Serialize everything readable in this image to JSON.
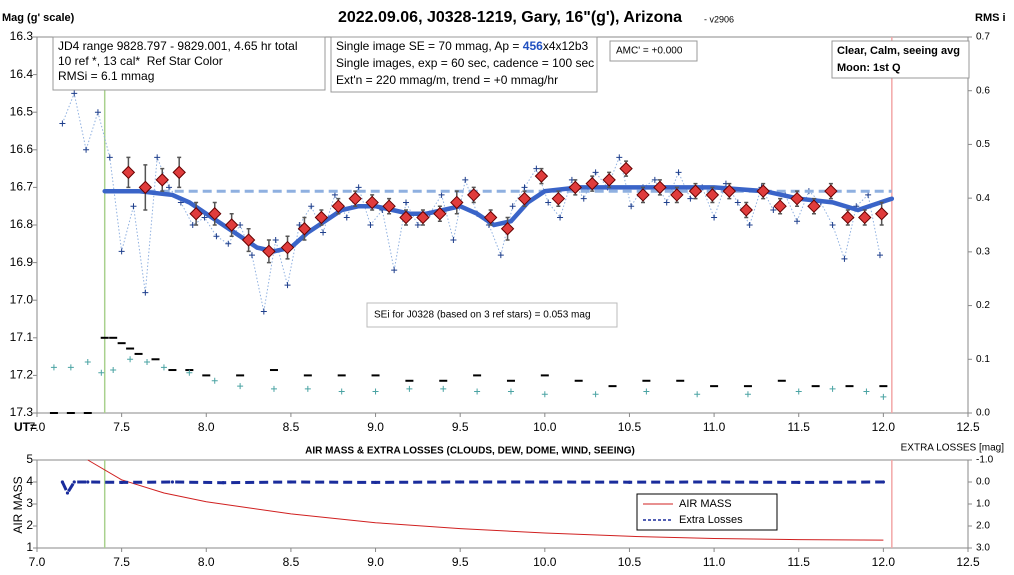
{
  "chart_data": [
    {
      "type": "scatter",
      "title": "2022.09.06, J0328-1219, Gary, 16\"(g'), Arizona",
      "subtitle": "- v2906",
      "ylabel": "Mag (g' scale)",
      "y2label": "RMS i",
      "xlabel": "UT=",
      "xlim": [
        7,
        12.5
      ],
      "xticks": [
        {
          "value": 7,
          "label": "7.0"
        },
        7.5,
        {
          "value": 8,
          "label": "8.0"
        },
        8.5,
        {
          "value": 9,
          "label": "9.0"
        },
        9.5,
        {
          "value": 10,
          "label": "10.0"
        },
        10.5,
        {
          "value": 11,
          "label": "11.0"
        },
        11.5,
        {
          "value": 12,
          "label": "12.0"
        },
        12.5
      ],
      "ylim": [
        17.3,
        16.3
      ],
      "yticks": [
        16.3,
        16.4,
        16.5,
        16.6,
        16.7,
        16.8,
        16.9,
        {
          "value": 17,
          "label": "17.0"
        },
        17.1,
        17.2,
        17.3
      ],
      "y2lim": [
        0,
        0.7
      ],
      "y2ticks": [
        {
          "value": 0,
          "label": "0.0"
        },
        0.1,
        0.2,
        0.3,
        0.4,
        0.5,
        0.6,
        0.7
      ],
      "vlines": [
        {
          "x": 7.4,
          "color": "#a9d18e"
        },
        {
          "x": 12.05,
          "color": "#f2a7a7"
        }
      ],
      "annotations": [
        [
          "JD4 range 9828.797 - 9829.001, 4.65 hr total",
          "10 ref *, 13 cal*  Ref Star Color",
          "RMSi = 6.1 mmag"
        ],
        [
          [
            "Single image SE = 70 mmag, Ap = ",
            "456",
            "x4x12b3"
          ],
          "Single images, exp = 60 sec, cadence = 100 sec",
          "Ext'n = 220 mmag/m, trend = +0 mmag/hr"
        ],
        [
          "AMC' = +0.000"
        ],
        [
          [
            "Clear, ",
            "Calm",
            ", seeing avg"
          ],
          "Moon: 1st Q"
        ],
        [
          "SEi for J0328 (based on 3 ref stars) = 0.053 mag"
        ]
      ],
      "series": [
        {
          "color": "#1f3f8c",
          "line_color": "#8fb0e0",
          "marker": "plus",
          "line": "dotted",
          "x": [
            7.15,
            7.22,
            7.29,
            7.36,
            7.43,
            7.5,
            7.57,
            7.64,
            7.71,
            7.78,
            7.85,
            7.92,
            7.99,
            8.06,
            8.13,
            8.2,
            8.27,
            8.34,
            8.41,
            8.48,
            8.55,
            8.62,
            8.69,
            8.76,
            8.83,
            8.9,
            8.97,
            9.04,
            9.11,
            9.18,
            9.25,
            9.32,
            9.39,
            9.46,
            9.53,
            9.6,
            9.67,
            9.74,
            9.81,
            9.88,
            9.95,
            10.02,
            10.09,
            10.16,
            10.23,
            10.3,
            10.37,
            10.44,
            10.51,
            10.58,
            10.65,
            10.72,
            10.79,
            10.86,
            10.93,
            11.0,
            11.07,
            11.14,
            11.21,
            11.28,
            11.35,
            11.42,
            11.49,
            11.56,
            11.63,
            11.7,
            11.77,
            11.84,
            11.91,
            11.98
          ],
          "values": [
            16.53,
            16.45,
            16.6,
            16.5,
            16.62,
            16.87,
            16.75,
            16.98,
            16.62,
            16.7,
            16.74,
            16.8,
            16.78,
            16.83,
            16.85,
            16.8,
            16.88,
            17.03,
            16.84,
            16.96,
            16.8,
            16.75,
            16.82,
            16.72,
            16.78,
            16.7,
            16.8,
            16.76,
            16.92,
            16.74,
            16.8,
            16.77,
            16.72,
            16.84,
            16.68,
            16.77,
            16.8,
            16.88,
            16.75,
            16.7,
            16.65,
            16.74,
            16.78,
            16.68,
            16.73,
            16.66,
            16.7,
            16.62,
            16.75,
            16.7,
            16.68,
            16.74,
            16.66,
            16.73,
            16.7,
            16.78,
            16.69,
            16.74,
            16.8,
            16.7,
            16.76,
            16.72,
            16.79,
            16.71,
            16.74,
            16.8,
            16.89,
            16.75,
            16.72,
            16.88
          ]
        },
        {
          "color": "#8fb0e0",
          "marker": "none",
          "line": "dashed",
          "x": [
            7.4,
            12.05
          ],
          "values": [
            16.71,
            16.71
          ]
        },
        {
          "color": "#3a64c8",
          "marker": "none",
          "line": "thick",
          "x": [
            7.4,
            7.6,
            7.8,
            7.9,
            8.0,
            8.1,
            8.2,
            8.3,
            8.4,
            8.5,
            8.6,
            8.7,
            8.8,
            8.9,
            9.0,
            9.1,
            9.2,
            9.3,
            9.4,
            9.5,
            9.6,
            9.7,
            9.8,
            9.9,
            10.0,
            10.2,
            10.5,
            11.0,
            11.3,
            11.5,
            11.7,
            11.85,
            12.05
          ],
          "values": [
            16.71,
            16.71,
            16.72,
            16.74,
            16.77,
            16.8,
            16.83,
            16.86,
            16.87,
            16.86,
            16.82,
            16.79,
            16.76,
            16.75,
            16.75,
            16.76,
            16.77,
            16.77,
            16.76,
            16.75,
            16.77,
            16.8,
            16.79,
            16.74,
            16.71,
            16.7,
            16.7,
            16.7,
            16.71,
            16.73,
            16.74,
            16.76,
            16.73
          ]
        },
        {
          "color": "#e03c3c",
          "marker": "diamond",
          "line": "none",
          "x": [
            7.54,
            7.64,
            7.74,
            7.84,
            7.94,
            8.05,
            8.15,
            8.25,
            8.37,
            8.48,
            8.58,
            8.68,
            8.78,
            8.88,
            8.98,
            9.08,
            9.18,
            9.28,
            9.38,
            9.48,
            9.58,
            9.68,
            9.78,
            9.88,
            9.98,
            10.08,
            10.18,
            10.28,
            10.38,
            10.48,
            10.58,
            10.68,
            10.78,
            10.89,
            10.99,
            11.09,
            11.19,
            11.29,
            11.39,
            11.49,
            11.59,
            11.69,
            11.79,
            11.89,
            11.99
          ],
          "values": [
            16.66,
            16.7,
            16.68,
            16.66,
            16.77,
            16.77,
            16.8,
            16.84,
            16.87,
            16.86,
            16.81,
            16.78,
            16.75,
            16.73,
            16.74,
            16.75,
            16.78,
            16.78,
            16.77,
            16.74,
            16.72,
            16.78,
            16.81,
            16.73,
            16.67,
            16.73,
            16.7,
            16.69,
            16.68,
            16.65,
            16.72,
            16.7,
            16.72,
            16.71,
            16.72,
            16.71,
            16.76,
            16.71,
            16.75,
            16.73,
            16.75,
            16.71,
            16.78,
            16.78,
            16.77
          ],
          "errors": [
            0.04,
            0.06,
            0.03,
            0.04,
            0.03,
            0.03,
            0.03,
            0.03,
            0.03,
            0.03,
            0.03,
            0.02,
            0.02,
            0.02,
            0.02,
            0.02,
            0.02,
            0.02,
            0.02,
            0.03,
            0.02,
            0.02,
            0.03,
            0.02,
            0.02,
            0.02,
            0.02,
            0.02,
            0.02,
            0.02,
            0.02,
            0.02,
            0.02,
            0.02,
            0.02,
            0.02,
            0.02,
            0.02,
            0.02,
            0.02,
            0.02,
            0.02,
            0.02,
            0.02,
            0.03
          ]
        },
        {
          "color": "#000000",
          "marker": "dash",
          "line": "none",
          "axis": "y2",
          "x": [
            7.1,
            7.2,
            7.3,
            7.4,
            7.45,
            7.5,
            7.55,
            7.6,
            7.7,
            7.8,
            7.9,
            8.0,
            8.2,
            8.4,
            8.6,
            8.8,
            9.0,
            9.2,
            9.4,
            9.6,
            9.8,
            10.0,
            10.2,
            10.4,
            10.6,
            10.8,
            11.0,
            11.2,
            11.4,
            11.6,
            11.8,
            12.0
          ],
          "values": [
            0,
            0,
            0,
            0.14,
            0.14,
            0.13,
            0.12,
            0.11,
            0.1,
            0.08,
            0.08,
            0.07,
            0.07,
            0.08,
            0.07,
            0.07,
            0.07,
            0.06,
            0.06,
            0.07,
            0.06,
            0.07,
            0.06,
            0.05,
            0.06,
            0.06,
            0.05,
            0.05,
            0.06,
            0.05,
            0.05,
            0.05
          ]
        },
        {
          "color": "#4aa3a3",
          "marker": "plus",
          "line": "none",
          "axis": "y2",
          "x": [
            7.1,
            7.2,
            7.3,
            7.38,
            7.45,
            7.55,
            7.65,
            7.75,
            7.9,
            8.05,
            8.2,
            8.4,
            8.6,
            8.8,
            9.0,
            9.2,
            9.4,
            9.6,
            9.8,
            10.0,
            10.3,
            10.6,
            10.9,
            11.2,
            11.5,
            11.7,
            11.9,
            12.0
          ],
          "values": [
            0.085,
            0.085,
            0.095,
            0.075,
            0.08,
            0.1,
            0.095,
            0.085,
            0.075,
            0.06,
            0.05,
            0.045,
            0.045,
            0.04,
            0.04,
            0.045,
            0.045,
            0.04,
            0.04,
            0.035,
            0.035,
            0.04,
            0.035,
            0.035,
            0.04,
            0.045,
            0.04,
            0.03
          ]
        }
      ]
    },
    {
      "type": "line",
      "title": "AIR MASS & EXTRA LOSSES (CLOUDS, DEW, DOME, WIND, SEEING)",
      "ylabel": "AIR MASS",
      "y2label": "EXTRA LOSSES [mag]",
      "xlim": [
        7,
        12.5
      ],
      "xticks": [
        {
          "value": 7,
          "label": "7.0"
        },
        7.5,
        {
          "value": 8,
          "label": "8.0"
        },
        8.5,
        {
          "value": 9,
          "label": "9.0"
        },
        9.5,
        {
          "value": 10,
          "label": "10.0"
        },
        10.5,
        {
          "value": 11,
          "label": "11.0"
        },
        11.5,
        {
          "value": 12,
          "label": "12.0"
        },
        12.5
      ],
      "ylim": [
        1,
        5
      ],
      "yticks": [
        1,
        2,
        3,
        4,
        5
      ],
      "y2lim": [
        3,
        -1
      ],
      "y2ticks": [
        {
          "value": -1,
          "label": "-1.0"
        },
        {
          "value": 0,
          "label": "0.0"
        },
        {
          "value": 1,
          "label": "1.0"
        },
        {
          "value": 2,
          "label": "2.0"
        },
        {
          "value": 3,
          "label": "3.0"
        }
      ],
      "vlines": [
        {
          "x": 7.4,
          "color": "#a9d18e"
        },
        {
          "x": 12.05,
          "color": "#f2a7a7"
        }
      ],
      "legend": "right",
      "series": [
        {
          "name": "AIR MASS",
          "color": "#d02020",
          "marker": "none",
          "line": "solid",
          "x": [
            7.3,
            7.5,
            7.75,
            8.0,
            8.5,
            9.0,
            9.5,
            10.0,
            10.5,
            11.0,
            11.5,
            12.0
          ],
          "values": [
            5.0,
            4.1,
            3.5,
            3.1,
            2.55,
            2.15,
            1.88,
            1.68,
            1.53,
            1.43,
            1.38,
            1.36
          ]
        },
        {
          "name": "Extra Losses",
          "color": "#1a2c9c",
          "marker": "dot",
          "line": "dashed",
          "axis": "y2",
          "x": [
            7.15,
            7.18,
            7.22,
            7.3,
            7.5,
            7.8,
            8.1,
            8.5,
            9.0,
            9.5,
            10.0,
            10.5,
            11.0,
            11.5,
            12.0
          ],
          "values": [
            0.0,
            0.5,
            0.0,
            0.0,
            0.02,
            0.0,
            0.03,
            0.0,
            0.02,
            0.0,
            0.0,
            0.01,
            0.0,
            0.02,
            0.0
          ]
        }
      ]
    }
  ]
}
